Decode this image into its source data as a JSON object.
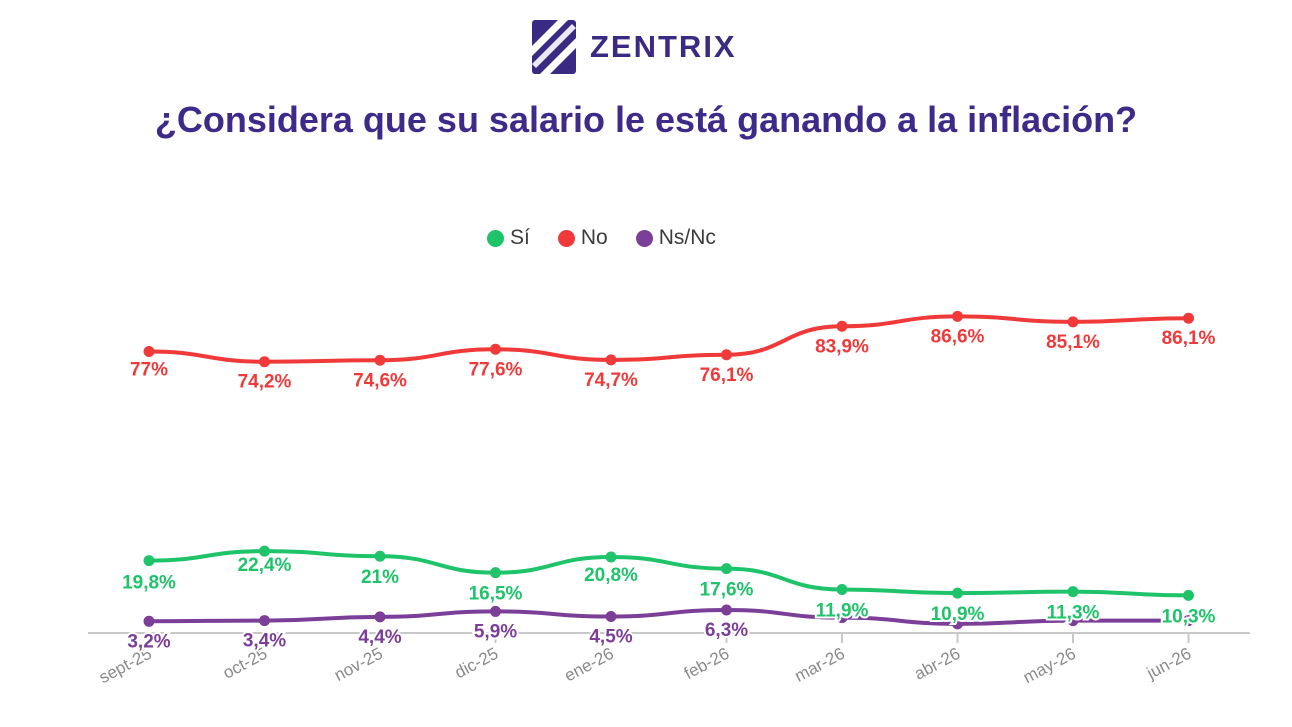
{
  "brand": {
    "name": "ZENTRIX",
    "colors": {
      "logo": "#3a2a84",
      "title": "#3e2a88"
    }
  },
  "chart_data": {
    "type": "line",
    "title": "¿Considera que su salario le está ganando a la inflación?",
    "categories": [
      "sept-25",
      "oct-25",
      "nov-25",
      "dic-25",
      "ene-26",
      "feb-26",
      "mar-26",
      "abr-26",
      "may-26",
      "jun-26"
    ],
    "series": [
      {
        "name": "Sí",
        "color": "#1ec36a",
        "values": [
          19.8,
          22.4,
          21,
          16.5,
          20.8,
          17.6,
          11.9,
          10.9,
          11.3,
          10.3
        ],
        "labels": [
          "19,8%",
          "22,4%",
          "21%",
          "16,5%",
          "20,8%",
          "17,6%",
          "11,9%",
          "10,9%",
          "11,3%",
          "10,3%"
        ]
      },
      {
        "name": "No",
        "color": "#f03a3a",
        "values": [
          77,
          74.2,
          74.6,
          77.6,
          74.7,
          76.1,
          83.9,
          86.6,
          85.1,
          86.1
        ],
        "labels": [
          "77%",
          "74,2%",
          "74,6%",
          "77,6%",
          "74,7%",
          "76,1%",
          "83,9%",
          "86,6%",
          "85,1%",
          "86,1%"
        ]
      },
      {
        "name": "Ns/Nc",
        "color": "#7b3f98",
        "values": [
          3.2,
          3.4,
          4.4,
          5.9,
          4.5,
          6.3,
          4.2,
          2.5,
          3.4,
          3.4
        ],
        "labels": [
          "3,2%",
          "3,4%",
          "4,4%",
          "5,9%",
          "4,5%",
          "6,3%",
          "",
          "",
          "",
          ""
        ]
      }
    ],
    "ylim": [
      0,
      100
    ],
    "grid": false,
    "legend": "top-center"
  }
}
